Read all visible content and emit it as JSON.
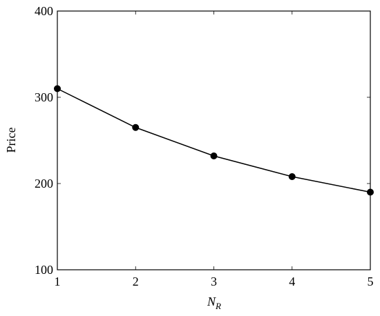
{
  "chart_data": {
    "type": "line",
    "y_label": "Price",
    "x_label": {
      "base": "N",
      "subscript": "R"
    },
    "x": [
      1,
      2,
      3,
      4,
      5
    ],
    "series": [
      {
        "color": "#000000",
        "values": [
          310,
          265,
          232,
          208,
          190
        ]
      }
    ],
    "xlim": [
      1,
      5
    ],
    "xticks": [
      1,
      2,
      3,
      4,
      5
    ],
    "ylim": [
      100,
      400
    ],
    "yticks": [
      100,
      200,
      300,
      400
    ],
    "grid": false
  }
}
